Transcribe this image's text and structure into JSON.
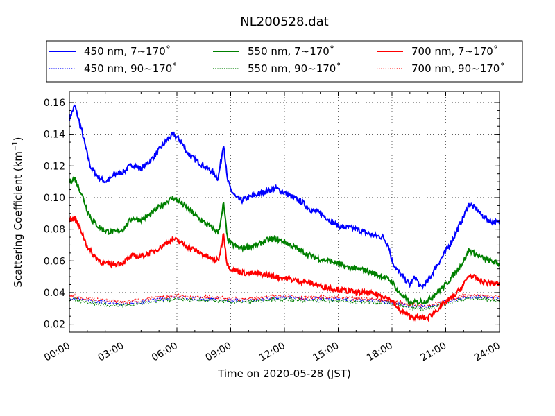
{
  "chart_data": {
    "type": "line",
    "title": "NL200528.dat",
    "xlabel": "Time on 2020-05-28 (JST)",
    "ylabel": "Scattering Coefficient (km",
    "ylabel_sup": "−1",
    "ylabel_tail": ")",
    "xlim": [
      0,
      24
    ],
    "ylim": [
      0.015,
      0.167
    ],
    "xticks": [
      0,
      3,
      6,
      9,
      12,
      15,
      18,
      21,
      24
    ],
    "xtick_labels": [
      "00:00",
      "03:00",
      "06:00",
      "09:00",
      "12:00",
      "15:00",
      "18:00",
      "21:00",
      "24:00"
    ],
    "yticks": [
      0.02,
      0.04,
      0.06,
      0.08,
      0.1,
      0.12,
      0.14,
      0.16
    ],
    "ytick_labels": [
      "0.02",
      "0.04",
      "0.06",
      "0.08",
      "0.10",
      "0.12",
      "0.14",
      "0.16"
    ],
    "grid": true,
    "legend_placement": "top, outside, 3 columns",
    "series": [
      {
        "name": "450 nm, 7∼170˚",
        "color": "#0000ff",
        "style": "solid",
        "x": [
          0,
          0.3,
          0.7,
          1.0,
          1.2,
          1.6,
          2.0,
          2.3,
          2.6,
          3.0,
          3.5,
          4.0,
          4.5,
          5.0,
          5.5,
          5.8,
          6.2,
          6.6,
          7.0,
          7.5,
          8.0,
          8.3,
          8.5,
          8.6,
          8.8,
          9.0,
          9.3,
          9.6,
          10.0,
          10.5,
          11.0,
          11.5,
          12.0,
          12.5,
          13.0,
          13.5,
          14.0,
          14.5,
          15.0,
          15.5,
          16.0,
          16.5,
          17.0,
          17.5,
          17.8,
          18.0,
          18.3,
          18.6,
          19.0,
          19.3,
          19.6,
          20.0,
          20.5,
          21.0,
          21.5,
          22.0,
          22.3,
          22.7,
          23.0,
          23.5,
          24.0
        ],
        "y": [
          0.15,
          0.158,
          0.142,
          0.127,
          0.119,
          0.113,
          0.11,
          0.112,
          0.115,
          0.116,
          0.121,
          0.118,
          0.123,
          0.13,
          0.137,
          0.14,
          0.136,
          0.128,
          0.124,
          0.12,
          0.116,
          0.112,
          0.126,
          0.135,
          0.112,
          0.105,
          0.1,
          0.098,
          0.1,
          0.102,
          0.104,
          0.106,
          0.103,
          0.1,
          0.097,
          0.092,
          0.09,
          0.086,
          0.082,
          0.081,
          0.08,
          0.078,
          0.076,
          0.075,
          0.07,
          0.06,
          0.054,
          0.05,
          0.045,
          0.05,
          0.043,
          0.047,
          0.057,
          0.066,
          0.076,
          0.088,
          0.096,
          0.093,
          0.089,
          0.085,
          0.084
        ]
      },
      {
        "name": "450 nm, 90∼170˚",
        "color": "#0000ff",
        "style": "dotted",
        "x": [
          0,
          1,
          2,
          3,
          4,
          5,
          6,
          7,
          8,
          9,
          10,
          11,
          12,
          13,
          14,
          15,
          16,
          17,
          18,
          19,
          20,
          21,
          22,
          23,
          24
        ],
        "y": [
          0.037,
          0.035,
          0.034,
          0.033,
          0.034,
          0.036,
          0.037,
          0.036,
          0.036,
          0.035,
          0.035,
          0.036,
          0.037,
          0.036,
          0.036,
          0.036,
          0.035,
          0.035,
          0.034,
          0.031,
          0.031,
          0.034,
          0.037,
          0.037,
          0.036
        ]
      },
      {
        "name": "550 nm, 7∼170˚",
        "color": "#008000",
        "style": "solid",
        "x": [
          0,
          0.3,
          0.7,
          1.0,
          1.3,
          1.7,
          2.0,
          2.5,
          3.0,
          3.5,
          4.0,
          4.5,
          5.0,
          5.5,
          5.8,
          6.3,
          6.8,
          7.3,
          7.8,
          8.3,
          8.5,
          8.6,
          8.8,
          9.0,
          9.5,
          10.0,
          10.5,
          11.0,
          11.5,
          12.0,
          12.5,
          13.0,
          13.5,
          14.0,
          14.5,
          15.0,
          15.5,
          16.0,
          16.5,
          17.0,
          17.5,
          18.0,
          18.3,
          18.7,
          19.0,
          19.5,
          20.0,
          20.5,
          21.0,
          21.5,
          22.0,
          22.3,
          22.7,
          23.0,
          23.5,
          24.0
        ],
        "y": [
          0.11,
          0.112,
          0.102,
          0.092,
          0.085,
          0.081,
          0.079,
          0.078,
          0.08,
          0.087,
          0.086,
          0.089,
          0.094,
          0.098,
          0.1,
          0.096,
          0.091,
          0.086,
          0.082,
          0.078,
          0.088,
          0.097,
          0.075,
          0.071,
          0.068,
          0.069,
          0.07,
          0.073,
          0.074,
          0.072,
          0.069,
          0.066,
          0.063,
          0.061,
          0.06,
          0.058,
          0.056,
          0.055,
          0.054,
          0.052,
          0.05,
          0.047,
          0.041,
          0.037,
          0.033,
          0.034,
          0.035,
          0.04,
          0.045,
          0.052,
          0.06,
          0.067,
          0.064,
          0.062,
          0.06,
          0.058
        ]
      },
      {
        "name": "550 nm, 90∼170˚",
        "color": "#008000",
        "style": "dotted",
        "x": [
          0,
          1,
          2,
          3,
          4,
          5,
          6,
          7,
          8,
          9,
          10,
          11,
          12,
          13,
          14,
          15,
          16,
          17,
          18,
          19,
          20,
          21,
          22,
          23,
          24
        ],
        "y": [
          0.036,
          0.034,
          0.032,
          0.032,
          0.033,
          0.035,
          0.036,
          0.035,
          0.035,
          0.034,
          0.034,
          0.035,
          0.036,
          0.035,
          0.035,
          0.035,
          0.034,
          0.034,
          0.033,
          0.03,
          0.03,
          0.033,
          0.036,
          0.036,
          0.035
        ]
      },
      {
        "name": "700 nm, 7∼170˚",
        "color": "#ff0000",
        "style": "solid",
        "x": [
          0,
          0.3,
          0.7,
          1.0,
          1.3,
          1.7,
          2.0,
          2.5,
          3.0,
          3.5,
          4.0,
          4.5,
          5.0,
          5.5,
          5.8,
          6.3,
          6.8,
          7.3,
          7.8,
          8.3,
          8.5,
          8.6,
          8.8,
          9.0,
          9.5,
          10.0,
          10.5,
          11.0,
          11.5,
          12.0,
          12.5,
          13.0,
          13.5,
          14.0,
          14.5,
          15.0,
          15.5,
          16.0,
          16.5,
          17.0,
          17.5,
          18.0,
          18.3,
          18.7,
          19.0,
          19.5,
          20.0,
          20.5,
          21.0,
          21.5,
          22.0,
          22.3,
          22.7,
          23.0,
          23.5,
          24.0
        ],
        "y": [
          0.086,
          0.087,
          0.078,
          0.069,
          0.064,
          0.06,
          0.058,
          0.058,
          0.059,
          0.063,
          0.063,
          0.065,
          0.068,
          0.072,
          0.074,
          0.071,
          0.068,
          0.065,
          0.062,
          0.06,
          0.07,
          0.078,
          0.058,
          0.055,
          0.053,
          0.052,
          0.052,
          0.051,
          0.05,
          0.049,
          0.048,
          0.047,
          0.046,
          0.044,
          0.043,
          0.042,
          0.041,
          0.04,
          0.04,
          0.039,
          0.038,
          0.035,
          0.03,
          0.027,
          0.025,
          0.024,
          0.024,
          0.029,
          0.034,
          0.038,
          0.045,
          0.051,
          0.049,
          0.047,
          0.046,
          0.045
        ]
      },
      {
        "name": "700 nm, 90∼170˚",
        "color": "#ff0000",
        "style": "dotted",
        "x": [
          0,
          1,
          2,
          3,
          4,
          5,
          6,
          7,
          8,
          9,
          10,
          11,
          12,
          13,
          14,
          15,
          16,
          17,
          18,
          19,
          20,
          21,
          22,
          23,
          24
        ],
        "y": [
          0.038,
          0.036,
          0.035,
          0.034,
          0.035,
          0.037,
          0.038,
          0.037,
          0.037,
          0.036,
          0.036,
          0.037,
          0.038,
          0.037,
          0.037,
          0.037,
          0.036,
          0.036,
          0.035,
          0.032,
          0.032,
          0.035,
          0.038,
          0.038,
          0.037
        ]
      }
    ]
  }
}
